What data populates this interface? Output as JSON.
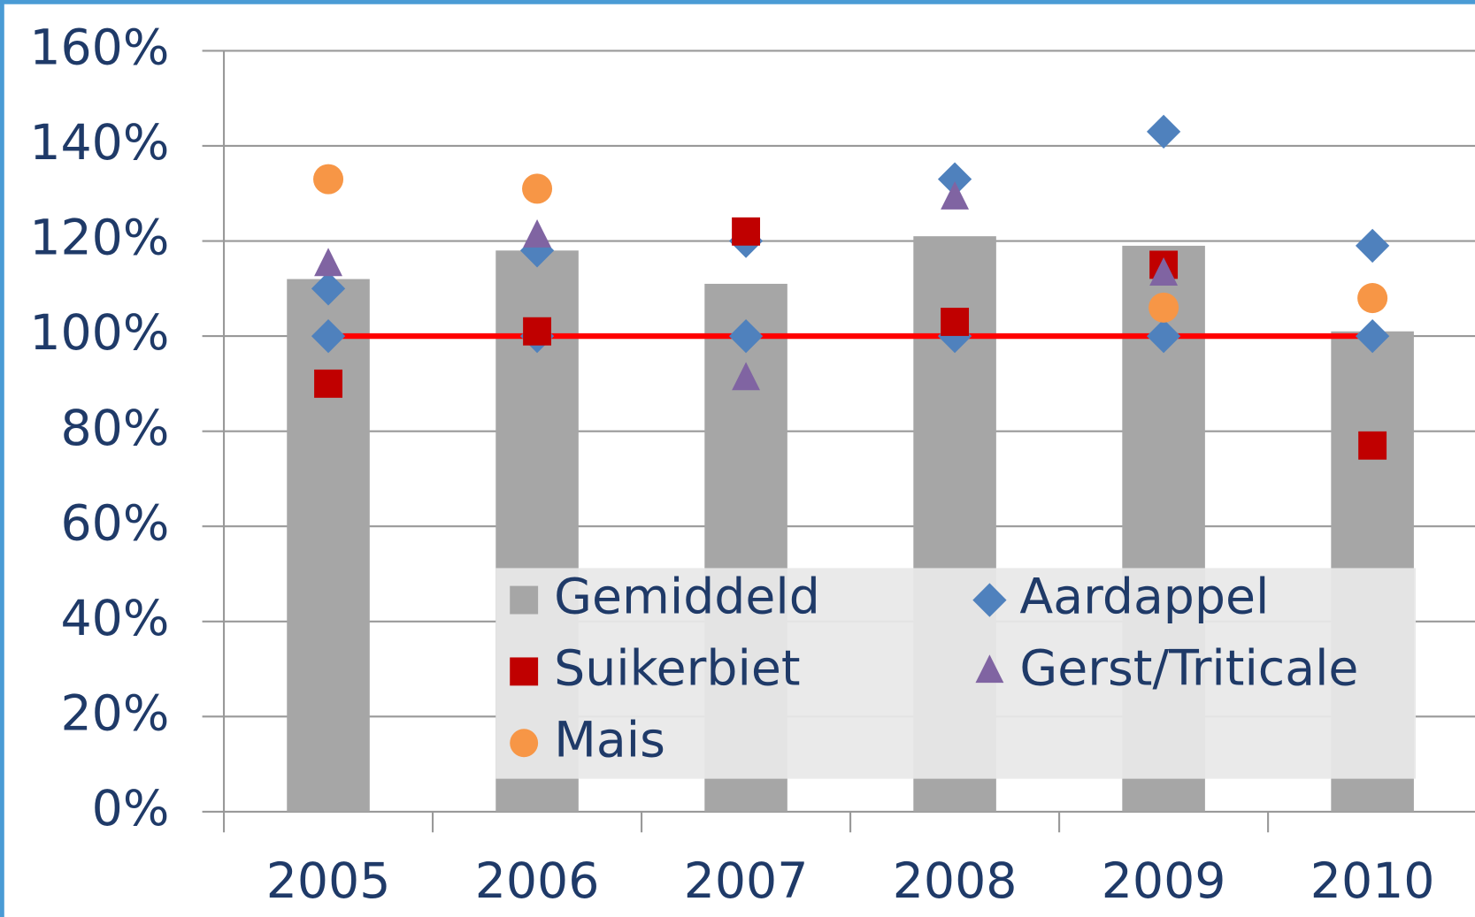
{
  "chart_data": {
    "type": "bar",
    "categories": [
      "2005",
      "2006",
      "2007",
      "2008",
      "2009",
      "2010"
    ],
    "ylim": [
      0,
      160
    ],
    "yticks": [
      {
        "value": 0,
        "label": "0%"
      },
      {
        "value": 20,
        "label": "20%"
      },
      {
        "value": 40,
        "label": "40%"
      },
      {
        "value": 60,
        "label": "60%"
      },
      {
        "value": 80,
        "label": "80%"
      },
      {
        "value": 100,
        "label": "100%"
      },
      {
        "value": 120,
        "label": "120%"
      },
      {
        "value": 140,
        "label": "140%"
      },
      {
        "value": 160,
        "label": "160%"
      }
    ],
    "grid": true,
    "series": [
      {
        "name": "Gemiddeld",
        "type": "bar",
        "marker": "square",
        "color": "#a6a6a6",
        "values": [
          112,
          118,
          111,
          121,
          119,
          101
        ]
      },
      {
        "name": "Aardappel",
        "type": "scatter",
        "marker": "diamond",
        "color": "#4f81bd",
        "values": [
          110,
          118,
          120,
          133,
          143,
          119
        ]
      },
      {
        "name": "Suikerbiet",
        "type": "scatter",
        "marker": "square",
        "color": "#c00000",
        "values": [
          90,
          101,
          122,
          103,
          115,
          77
        ]
      },
      {
        "name": "Gerst/Triticale",
        "type": "scatter",
        "marker": "triangle",
        "color": "#8064a2",
        "values": [
          115,
          121,
          91,
          129,
          113,
          null
        ]
      },
      {
        "name": "Mais",
        "type": "scatter",
        "marker": "circle",
        "color": "#f79646",
        "values": [
          133,
          131,
          null,
          null,
          106,
          108
        ]
      }
    ],
    "reference_line": {
      "color": "#ff0000",
      "marker": "diamond",
      "marker_color": "#4f81bd",
      "values": [
        100,
        100,
        100,
        100,
        100,
        100
      ]
    }
  }
}
